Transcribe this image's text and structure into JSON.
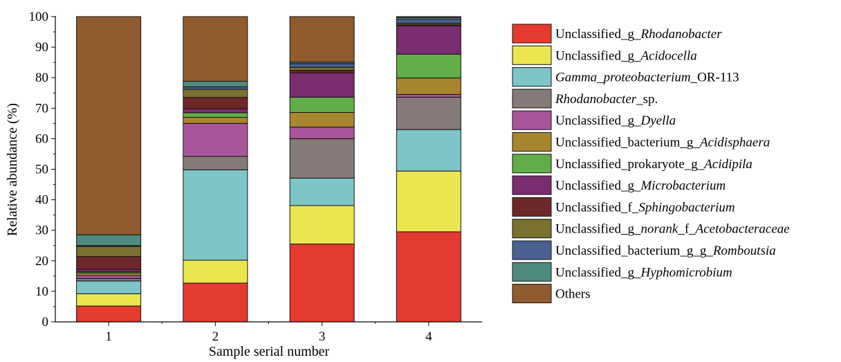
{
  "chart_data": {
    "type": "bar",
    "stacked": true,
    "xlabel": "Sample serial number",
    "ylabel": "Relative abundance (%)",
    "ylim": [
      0,
      100
    ],
    "yticks": [
      0,
      10,
      20,
      30,
      40,
      50,
      60,
      70,
      80,
      90,
      100
    ],
    "categories": [
      "1",
      "2",
      "3",
      "4"
    ],
    "legend_position": "right",
    "series": [
      {
        "name": "Unclassified_g_Rhodanobacter",
        "parts": [
          {
            "t": "Unclassified_g_"
          },
          {
            "t": "Rhodanobacter",
            "i": true
          }
        ],
        "color": "#e53a30",
        "values": [
          5.2,
          12.7,
          25.5,
          29.5
        ]
      },
      {
        "name": "Unclassified_g_Acidocella",
        "parts": [
          {
            "t": "Unclassified_g_"
          },
          {
            "t": "Acidocella",
            "i": true
          }
        ],
        "color": "#ebe650",
        "values": [
          4.0,
          7.5,
          12.6,
          19.9
        ]
      },
      {
        "name": "Gamma_proteobacterium_OR-113",
        "parts": [
          {
            "t": "Gamma_proteobacterium",
            "i": true
          },
          {
            "t": "_OR-113"
          }
        ],
        "color": "#7dc5c6",
        "values": [
          4.2,
          29.6,
          9.0,
          13.6
        ]
      },
      {
        "name": "Rhodanobacter_sp.",
        "parts": [
          {
            "t": "Rhodanobacter",
            "i": true
          },
          {
            "t": "_sp."
          }
        ],
        "color": "#857a77",
        "values": [
          0.8,
          4.4,
          12.9,
          10.6
        ]
      },
      {
        "name": "Unclassified_g_Dyella",
        "parts": [
          {
            "t": "Unclassified_g_"
          },
          {
            "t": "Dyella",
            "i": true
          }
        ],
        "color": "#a9559c",
        "values": [
          1.0,
          10.8,
          3.8,
          0.9
        ]
      },
      {
        "name": "Unclassified_bacterium_g_Acidisphaera",
        "parts": [
          {
            "t": "Unclassified_bacterium_g_"
          },
          {
            "t": "Acidisphaera",
            "i": true
          }
        ],
        "color": "#a88630",
        "values": [
          0.8,
          2.0,
          4.8,
          5.4
        ]
      },
      {
        "name": "Unclassified_prokaryote_g_Acidipila",
        "parts": [
          {
            "t": "Unclassified_prokaryote_g_"
          },
          {
            "t": "Acidipila",
            "i": true
          }
        ],
        "color": "#61ad48",
        "values": [
          0.4,
          1.5,
          5.0,
          7.8
        ]
      },
      {
        "name": "Unclassified_g_Microbacterium",
        "parts": [
          {
            "t": "Unclassified_g_"
          },
          {
            "t": "Microbacterium",
            "i": true
          }
        ],
        "color": "#7a2d70",
        "values": [
          0.8,
          1.3,
          8.0,
          9.3
        ]
      },
      {
        "name": "Unclassified_f_Sphingobacterium",
        "parts": [
          {
            "t": "Unclassified_f_"
          },
          {
            "t": "Sphingobacterium",
            "i": true
          }
        ],
        "color": "#6e282a",
        "values": [
          4.2,
          3.7,
          0.8,
          0.3
        ]
      },
      {
        "name": "Unclassified_g_norank_f_Acetobacteraceae",
        "parts": [
          {
            "t": "Unclassified_g_"
          },
          {
            "t": "norank",
            "i": true
          },
          {
            "t": "_f_"
          },
          {
            "t": "Acetobacteraceae",
            "i": true
          }
        ],
        "color": "#7a7030",
        "values": [
          3.3,
          2.7,
          1.0,
          0.5
        ]
      },
      {
        "name": "Unclassified_bacterium_g_g_Romboutsia",
        "parts": [
          {
            "t": "Unclassified_bacterium_g_g_"
          },
          {
            "t": "Romboutsia",
            "i": true
          }
        ],
        "color": "#4a6090",
        "values": [
          0.3,
          0.8,
          1.2,
          1.3
        ]
      },
      {
        "name": "Unclassified_g_Hyphomicrobium",
        "parts": [
          {
            "t": "Unclassified_g_"
          },
          {
            "t": "Hyphomicrobium",
            "i": true
          }
        ],
        "color": "#4e8b7e",
        "values": [
          3.5,
          1.8,
          0.5,
          0.6
        ]
      },
      {
        "name": "Others",
        "parts": [
          {
            "t": "Others"
          }
        ],
        "color": "#8f5b2f",
        "values": [
          71.5,
          21.2,
          14.9,
          0.3
        ]
      }
    ]
  }
}
